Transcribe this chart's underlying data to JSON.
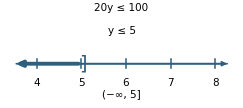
{
  "title_line1": "20y ≤ 100",
  "title_line2": "y ≤ 5",
  "interval_notation": "(−∞, 5]",
  "x_min": 4,
  "x_max": 8,
  "tick_positions": [
    4,
    5,
    6,
    7,
    8
  ],
  "tick_labels": [
    "4",
    "5",
    "6",
    "7",
    "8"
  ],
  "solution_value": 5,
  "line_color": "#2E5F7E",
  "text_color": "#000000",
  "background_color": "#ffffff",
  "title_fontsize": 7.5,
  "tick_fontsize": 7.5,
  "notation_fontsize": 7.5
}
